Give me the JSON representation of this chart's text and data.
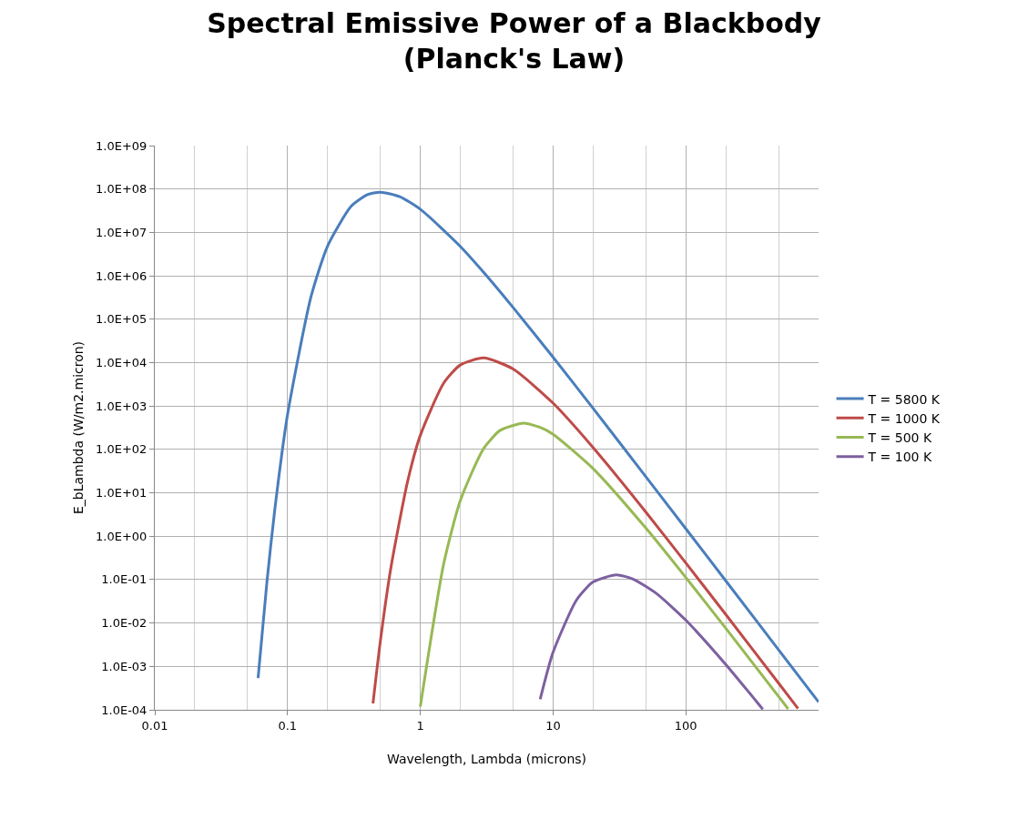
{
  "chart_data": {
    "type": "line",
    "title": "Spectral Emissive Power of a Blackbody\n(Planck's Law)",
    "xlabel": "Wavelength, Lambda (microns)",
    "ylabel": "E_bLambda (W/m2.micron)",
    "log": "xy",
    "grid": true,
    "legend": "right",
    "marker": "none",
    "line_style": "solid",
    "xlim": [
      0.01,
      1000
    ],
    "xticks": [
      0.01,
      0.1,
      1,
      10,
      100
    ],
    "ylim": [
      0.0001,
      1000000000
    ],
    "yticks": [
      {
        "value": 0.0001,
        "label": "1.0E-04"
      },
      {
        "value": 0.001,
        "label": "1.0E-03"
      },
      {
        "value": 0.01,
        "label": "1.0E-02"
      },
      {
        "value": 0.1,
        "label": "1.0E-01"
      },
      {
        "value": 1,
        "label": "1.0E+00"
      },
      {
        "value": 10,
        "label": "1.0E+01"
      },
      {
        "value": 100,
        "label": "1.0E+02"
      },
      {
        "value": 1000,
        "label": "1.0E+03"
      },
      {
        "value": 10000,
        "label": "1.0E+04"
      },
      {
        "value": 100000,
        "label": "1.0E+05"
      },
      {
        "value": 1000000,
        "label": "1.0E+06"
      },
      {
        "value": 10000000,
        "label": "1.0E+07"
      },
      {
        "value": 100000000,
        "label": "1.0E+08"
      },
      {
        "value": 1000000000,
        "label": "1.0E+09"
      }
    ],
    "series": [
      {
        "name": "T = 5800 K",
        "color": "#4a7ebb",
        "x": [
          0.06,
          0.07,
          0.08,
          0.1,
          0.15,
          0.2,
          0.3,
          0.4,
          0.5,
          0.7,
          1,
          2,
          3,
          5,
          10,
          20,
          50,
          100,
          200,
          500,
          1000
        ],
        "values": [
          0.00054,
          0.091,
          3.9,
          634,
          324000,
          4810000,
          39400000,
          74000000,
          84500000,
          66300000,
          34200000,
          4760000,
          1200000,
          186000,
          13300,
          885,
          23.5,
          1.49,
          0.0937,
          0.00241,
          0.000151
        ]
      },
      {
        "name": "T = 1000 K",
        "color": "#be4b48",
        "x": [
          0.44,
          0.5,
          0.6,
          0.8,
          1,
          1.5,
          2,
          3,
          5,
          10,
          20,
          50,
          100,
          200,
          500,
          700
        ],
        "values": [
          0.00014,
          0.0038,
          0.185,
          17.6,
          211,
          3365,
          8790,
          12800,
          7130,
          1164,
          111,
          3.6,
          0.242,
          0.0157,
          0.00041,
          0.000107
        ]
      },
      {
        "name": "T = 500 K",
        "color": "#98b954",
        "x": [
          1,
          1.5,
          2,
          3,
          4,
          6,
          8,
          10,
          20,
          50,
          100,
          200,
          500,
          590
        ],
        "values": [
          0.000118,
          0.23,
          6.6,
          105,
          275,
          401,
          322,
          223,
          36.3,
          1.54,
          0.112,
          0.00755,
          0.000202,
          0.000105
        ]
      },
      {
        "name": "T = 100 K",
        "color": "#7d60a0",
        "x": [
          8,
          10,
          15,
          20,
          30,
          40,
          60,
          100,
          200,
          300,
          350,
          380
        ],
        "values": [
          0.000176,
          0.00211,
          0.0336,
          0.088,
          0.128,
          0.103,
          0.048,
          0.0116,
          0.00111,
          0.00025,
          0.00014,
          0.000103
        ]
      }
    ]
  }
}
